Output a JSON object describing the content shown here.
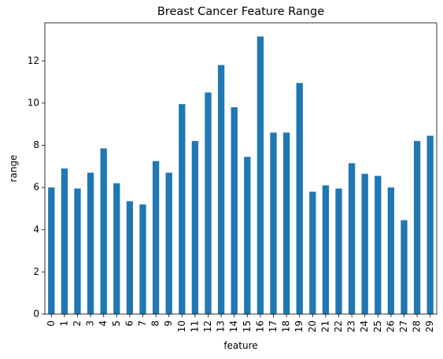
{
  "chart_data": {
    "type": "bar",
    "title": "Breast Cancer Feature Range",
    "xlabel": "feature",
    "ylabel": "range",
    "categories": [
      "0",
      "1",
      "2",
      "3",
      "4",
      "5",
      "6",
      "7",
      "8",
      "9",
      "10",
      "11",
      "12",
      "13",
      "14",
      "15",
      "16",
      "17",
      "18",
      "19",
      "20",
      "21",
      "22",
      "23",
      "24",
      "25",
      "26",
      "27",
      "28",
      "29"
    ],
    "values": [
      6.0,
      6.9,
      5.95,
      6.7,
      7.85,
      6.2,
      5.35,
      5.2,
      7.25,
      6.7,
      9.95,
      8.2,
      10.5,
      11.8,
      9.8,
      7.45,
      13.15,
      8.6,
      8.6,
      10.95,
      5.8,
      6.1,
      5.95,
      7.15,
      6.65,
      6.55,
      6.0,
      4.45,
      8.2,
      8.45
    ],
    "yticks": [
      0,
      2,
      4,
      6,
      8,
      10,
      12
    ],
    "ylim": [
      0,
      13.8
    ],
    "grid": false,
    "bar_color": "#1f77b4"
  }
}
